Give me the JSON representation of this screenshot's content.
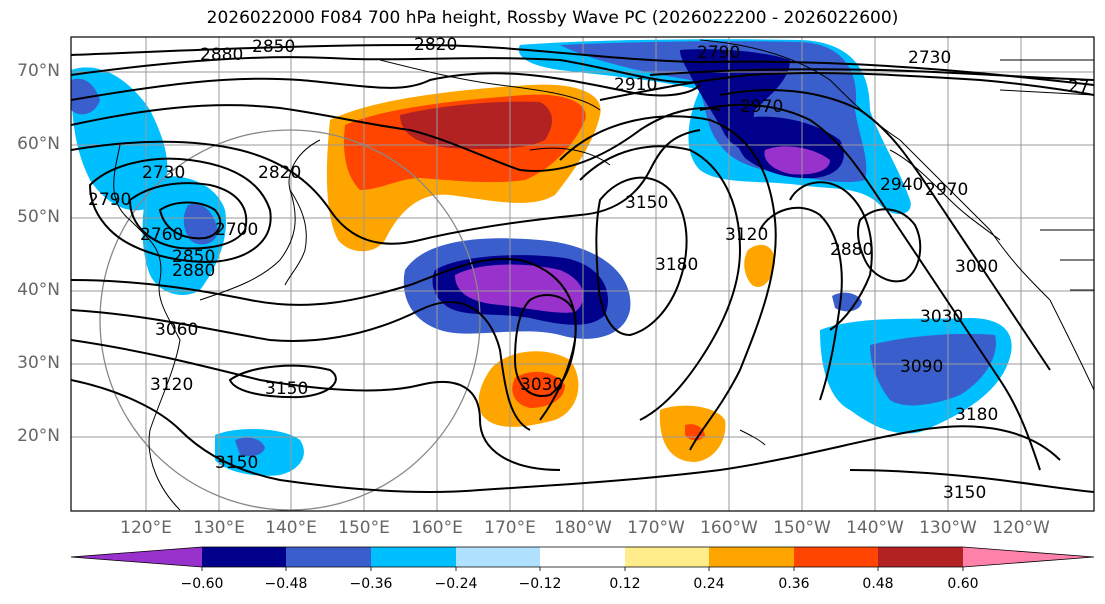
{
  "title": "2026022000 F084 700 hPa height, Rossby Wave PC (2026022200 - 2026022600)",
  "lat_labels": [
    "70°N",
    "60°N",
    "50°N",
    "40°N",
    "30°N",
    "20°N"
  ],
  "lon_labels": [
    "120°E",
    "130°E",
    "140°E",
    "150°E",
    "160°E",
    "170°E",
    "180°W",
    "170°W",
    "160°W",
    "150°W",
    "140°W",
    "130°W",
    "120°W"
  ],
  "contour_labels": [
    "2880",
    "2850",
    "2820",
    "2790",
    "2730",
    "2910",
    "2970",
    "2730",
    "2790",
    "2760",
    "2700",
    "2820",
    "2850",
    "2880",
    "3150",
    "3180",
    "3120",
    "2880",
    "2940",
    "3000",
    "3030",
    "3060",
    "3120",
    "3150",
    "3030",
    "3090",
    "3180",
    "3150",
    "3150",
    "2970",
    "27"
  ],
  "colorbar": {
    "ticks": [
      "−0.60",
      "−0.48",
      "−0.36",
      "−0.24",
      "−0.12",
      "0.12",
      "0.24",
      "0.36",
      "0.48",
      "0.60"
    ],
    "colors": [
      "#9932cc",
      "#00008b",
      "#3a5fcd",
      "#00bfff",
      "#b0e2ff",
      "#ffffff",
      "#ffec8b",
      "#ffa500",
      "#ff4500",
      "#b22222",
      "#ff82ab"
    ]
  }
}
